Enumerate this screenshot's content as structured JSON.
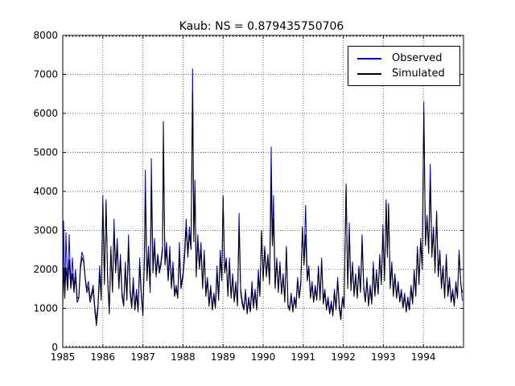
{
  "chart_data": {
    "type": "line",
    "title": "Kaub: NS = 0.879435750706",
    "xlabel": "",
    "ylabel": "",
    "xlim": [
      1985,
      1995
    ],
    "ylim": [
      0,
      8000
    ],
    "x_ticks": [
      1985,
      1986,
      1987,
      1988,
      1989,
      1990,
      1991,
      1992,
      1993,
      1994
    ],
    "y_ticks": [
      0,
      1000,
      2000,
      3000,
      4000,
      5000,
      6000,
      7000,
      8000
    ],
    "x_minor_ticks_per_year": 12,
    "grid": true,
    "grid_linestyle": "dotted",
    "legend": {
      "position": "upper right",
      "entries": [
        "Observed",
        "Simulated"
      ]
    },
    "colors": {
      "observed": "#0000cc",
      "simulated": "#000000",
      "grid": "#666666",
      "axis": "#000000",
      "background": "#ffffff"
    },
    "x_encoding": "decimal_year",
    "x": [
      1985.0,
      1985.02,
      1985.05,
      1985.08,
      1985.12,
      1985.16,
      1985.2,
      1985.24,
      1985.28,
      1985.32,
      1985.36,
      1985.4,
      1985.44,
      1985.48,
      1985.52,
      1985.56,
      1985.6,
      1985.64,
      1985.68,
      1985.72,
      1985.76,
      1985.8,
      1985.84,
      1985.88,
      1985.92,
      1985.96,
      1986.0,
      1986.04,
      1986.08,
      1986.12,
      1986.16,
      1986.2,
      1986.24,
      1986.28,
      1986.32,
      1986.36,
      1986.4,
      1986.44,
      1986.48,
      1986.52,
      1986.56,
      1986.6,
      1986.64,
      1986.68,
      1986.72,
      1986.76,
      1986.8,
      1986.84,
      1986.88,
      1986.92,
      1986.96,
      1987.0,
      1987.04,
      1987.06,
      1987.1,
      1987.14,
      1987.18,
      1987.21,
      1987.25,
      1987.29,
      1987.33,
      1987.37,
      1987.41,
      1987.45,
      1987.49,
      1987.51,
      1987.55,
      1987.59,
      1987.63,
      1987.67,
      1987.71,
      1987.75,
      1987.79,
      1987.83,
      1987.87,
      1987.91,
      1987.95,
      1988.0,
      1988.04,
      1988.08,
      1988.12,
      1988.16,
      1988.2,
      1988.24,
      1988.27,
      1988.3,
      1988.33,
      1988.37,
      1988.41,
      1988.45,
      1988.49,
      1988.53,
      1988.57,
      1988.61,
      1988.65,
      1988.69,
      1988.73,
      1988.77,
      1988.81,
      1988.85,
      1988.89,
      1988.93,
      1988.97,
      1989.0,
      1989.04,
      1989.08,
      1989.12,
      1989.16,
      1989.2,
      1989.24,
      1989.28,
      1989.32,
      1989.36,
      1989.4,
      1989.44,
      1989.48,
      1989.52,
      1989.56,
      1989.6,
      1989.64,
      1989.68,
      1989.72,
      1989.76,
      1989.8,
      1989.84,
      1989.88,
      1989.92,
      1989.96,
      1990.0,
      1990.04,
      1990.08,
      1990.12,
      1990.16,
      1990.2,
      1990.23,
      1990.26,
      1990.3,
      1990.34,
      1990.38,
      1990.42,
      1990.46,
      1990.5,
      1990.54,
      1990.58,
      1990.62,
      1990.66,
      1990.7,
      1990.74,
      1990.78,
      1990.82,
      1990.86,
      1990.9,
      1990.94,
      1990.98,
      1991.02,
      1991.06,
      1991.1,
      1991.14,
      1991.18,
      1991.22,
      1991.26,
      1991.3,
      1991.34,
      1991.38,
      1991.42,
      1991.46,
      1991.5,
      1991.54,
      1991.58,
      1991.62,
      1991.66,
      1991.7,
      1991.74,
      1991.78,
      1991.82,
      1991.86,
      1991.9,
      1991.94,
      1991.98,
      1992.02,
      1992.07,
      1992.11,
      1992.15,
      1992.19,
      1992.23,
      1992.27,
      1992.31,
      1992.35,
      1992.39,
      1992.43,
      1992.47,
      1992.51,
      1992.55,
      1992.59,
      1992.63,
      1992.67,
      1992.71,
      1992.75,
      1992.79,
      1992.83,
      1992.87,
      1992.91,
      1992.95,
      1992.99,
      1993.03,
      1993.07,
      1993.1,
      1993.13,
      1993.17,
      1993.21,
      1993.25,
      1993.29,
      1993.33,
      1993.37,
      1993.41,
      1993.45,
      1993.49,
      1993.53,
      1993.57,
      1993.61,
      1993.65,
      1993.69,
      1993.73,
      1993.77,
      1993.81,
      1993.85,
      1993.89,
      1993.93,
      1993.97,
      1994.01,
      1994.05,
      1994.09,
      1994.13,
      1994.17,
      1994.21,
      1994.25,
      1994.29,
      1994.33,
      1994.37,
      1994.41,
      1994.45,
      1994.49,
      1994.53,
      1994.57,
      1994.61,
      1994.65,
      1994.69,
      1994.73,
      1994.77,
      1994.81,
      1994.85,
      1994.89,
      1994.93,
      1994.97
    ],
    "series": [
      {
        "name": "Observed",
        "color": "#0000cc",
        "values": [
          900,
          3250,
          1350,
          2950,
          1500,
          2900,
          1600,
          2300,
          1500,
          2000,
          1250,
          1300,
          2100,
          2450,
          2300,
          1800,
          1500,
          1700,
          1250,
          1400,
          1600,
          1050,
          700,
          1100,
          2100,
          1300,
          3900,
          1700,
          3800,
          1800,
          900,
          2600,
          1500,
          3300,
          2000,
          2800,
          1600,
          2400,
          1400,
          1100,
          2200,
          1300,
          2900,
          1500,
          1100,
          1800,
          1000,
          1500,
          1000,
          2300,
          1400,
          900,
          2500,
          4550,
          1800,
          2600,
          1500,
          4850,
          2000,
          2800,
          1900,
          2400,
          2000,
          2200,
          2600,
          5000,
          2200,
          2700,
          1800,
          2600,
          1600,
          2200,
          1400,
          1600,
          1300,
          2700,
          1600,
          1900,
          2500,
          3300,
          2400,
          3100,
          2600,
          7150,
          2900,
          4300,
          1900,
          2900,
          2100,
          2700,
          1600,
          2500,
          1400,
          1800,
          1100,
          1600,
          1000,
          1400,
          1100,
          2100,
          1300,
          2500,
          1800,
          3900,
          2000,
          2300,
          1400,
          2300,
          1300,
          1900,
          1200,
          1700,
          1100,
          3450,
          1500,
          1200,
          1000,
          1500,
          900,
          1300,
          950,
          1700,
          1100,
          1500,
          1000,
          2000,
          1400,
          3000,
          1800,
          2600,
          1900,
          2400,
          1700,
          5150,
          2700,
          3900,
          1600,
          2300,
          1500,
          2200,
          1400,
          1900,
          1200,
          2600,
          1100,
          1000,
          1400,
          950,
          1300,
          1100,
          1800,
          1300,
          1700,
          3000,
          2200,
          3650,
          1800,
          2100,
          1300,
          1700,
          1200,
          1600,
          1250,
          2100,
          1300,
          2300,
          1200,
          1500,
          1000,
          1300,
          900,
          1200,
          850,
          1500,
          1000,
          1800,
          1100,
          800,
          1300,
          1100,
          4150,
          1600,
          3200,
          1500,
          2200,
          1400,
          1900,
          1300,
          2100,
          1500,
          2900,
          1600,
          1200,
          1800,
          1100,
          1600,
          1200,
          2200,
          1400,
          2000,
          1400,
          2400,
          1700,
          3150,
          1800,
          3800,
          2400,
          3700,
          1600,
          2200,
          1400,
          1900,
          1300,
          1700,
          1200,
          1500,
          1050,
          1400,
          950,
          1300,
          1000,
          1600,
          1200,
          2000,
          1400,
          2600,
          1700,
          2800,
          2100,
          6300,
          2700,
          3400,
          2500,
          4700,
          2400,
          3100,
          2000,
          3500,
          1900,
          2500,
          1600,
          2100,
          1300,
          2400,
          1400,
          1800,
          1200,
          1500,
          1100,
          1700,
          1300,
          2500,
          1700,
          1200
        ]
      },
      {
        "name": "Simulated",
        "color": "#000000",
        "values": [
          1150,
          2050,
          1250,
          2050,
          1450,
          2250,
          1500,
          1900,
          1400,
          1800,
          1150,
          1250,
          2000,
          2300,
          2200,
          1750,
          1400,
          1550,
          1150,
          1300,
          1500,
          950,
          550,
          1000,
          1900,
          1200,
          3650,
          1600,
          3700,
          1700,
          850,
          2500,
          1400,
          3000,
          1900,
          2600,
          1500,
          2200,
          1300,
          1050,
          2000,
          1200,
          2600,
          1400,
          1000,
          1600,
          950,
          1350,
          900,
          2100,
          1300,
          800,
          2300,
          4000,
          1700,
          2400,
          1400,
          4150,
          1900,
          2600,
          1800,
          2300,
          1900,
          2100,
          2500,
          5800,
          2100,
          2500,
          1700,
          2400,
          1500,
          2000,
          1300,
          1500,
          1250,
          2400,
          1500,
          1800,
          2300,
          3100,
          2300,
          2900,
          2500,
          6550,
          2700,
          4000,
          1800,
          2700,
          2000,
          2500,
          1500,
          2400,
          1300,
          1700,
          1050,
          1500,
          950,
          1300,
          1000,
          1900,
          1200,
          2300,
          1700,
          3850,
          1900,
          2200,
          1300,
          2100,
          1250,
          1800,
          1150,
          1600,
          1050,
          3100,
          1400,
          1100,
          950,
          1400,
          850,
          1200,
          900,
          1500,
          1000,
          1400,
          950,
          1800,
          1300,
          3000,
          1700,
          2500,
          1800,
          2300,
          1600,
          4230,
          2600,
          3300,
          1500,
          2200,
          1400,
          2100,
          1350,
          1800,
          1150,
          2550,
          1050,
          950,
          1300,
          900,
          1250,
          1000,
          1700,
          1250,
          1600,
          3100,
          2100,
          2900,
          1700,
          2000,
          1250,
          1600,
          1150,
          1500,
          1200,
          2000,
          1200,
          2200,
          1100,
          1400,
          950,
          1200,
          850,
          1100,
          800,
          1400,
          950,
          1700,
          1000,
          700,
          1250,
          1000,
          4200,
          1500,
          2900,
          1450,
          2100,
          1300,
          1800,
          1250,
          2000,
          1400,
          2700,
          1500,
          1150,
          1700,
          1050,
          1500,
          1100,
          2000,
          1300,
          1900,
          1350,
          2300,
          1600,
          2900,
          1700,
          3700,
          2300,
          3650,
          1500,
          2100,
          1300,
          1800,
          1250,
          1600,
          1150,
          1400,
          1000,
          1300,
          900,
          1200,
          950,
          1500,
          1100,
          1900,
          1300,
          2500,
          1600,
          2700,
          2000,
          6050,
          2600,
          3300,
          2400,
          4250,
          2300,
          3000,
          1900,
          3450,
          1800,
          2400,
          1500,
          2000,
          1250,
          2300,
          1300,
          1700,
          1150,
          1400,
          1050,
          1600,
          1250,
          2400,
          1650,
          1400
        ]
      }
    ]
  }
}
